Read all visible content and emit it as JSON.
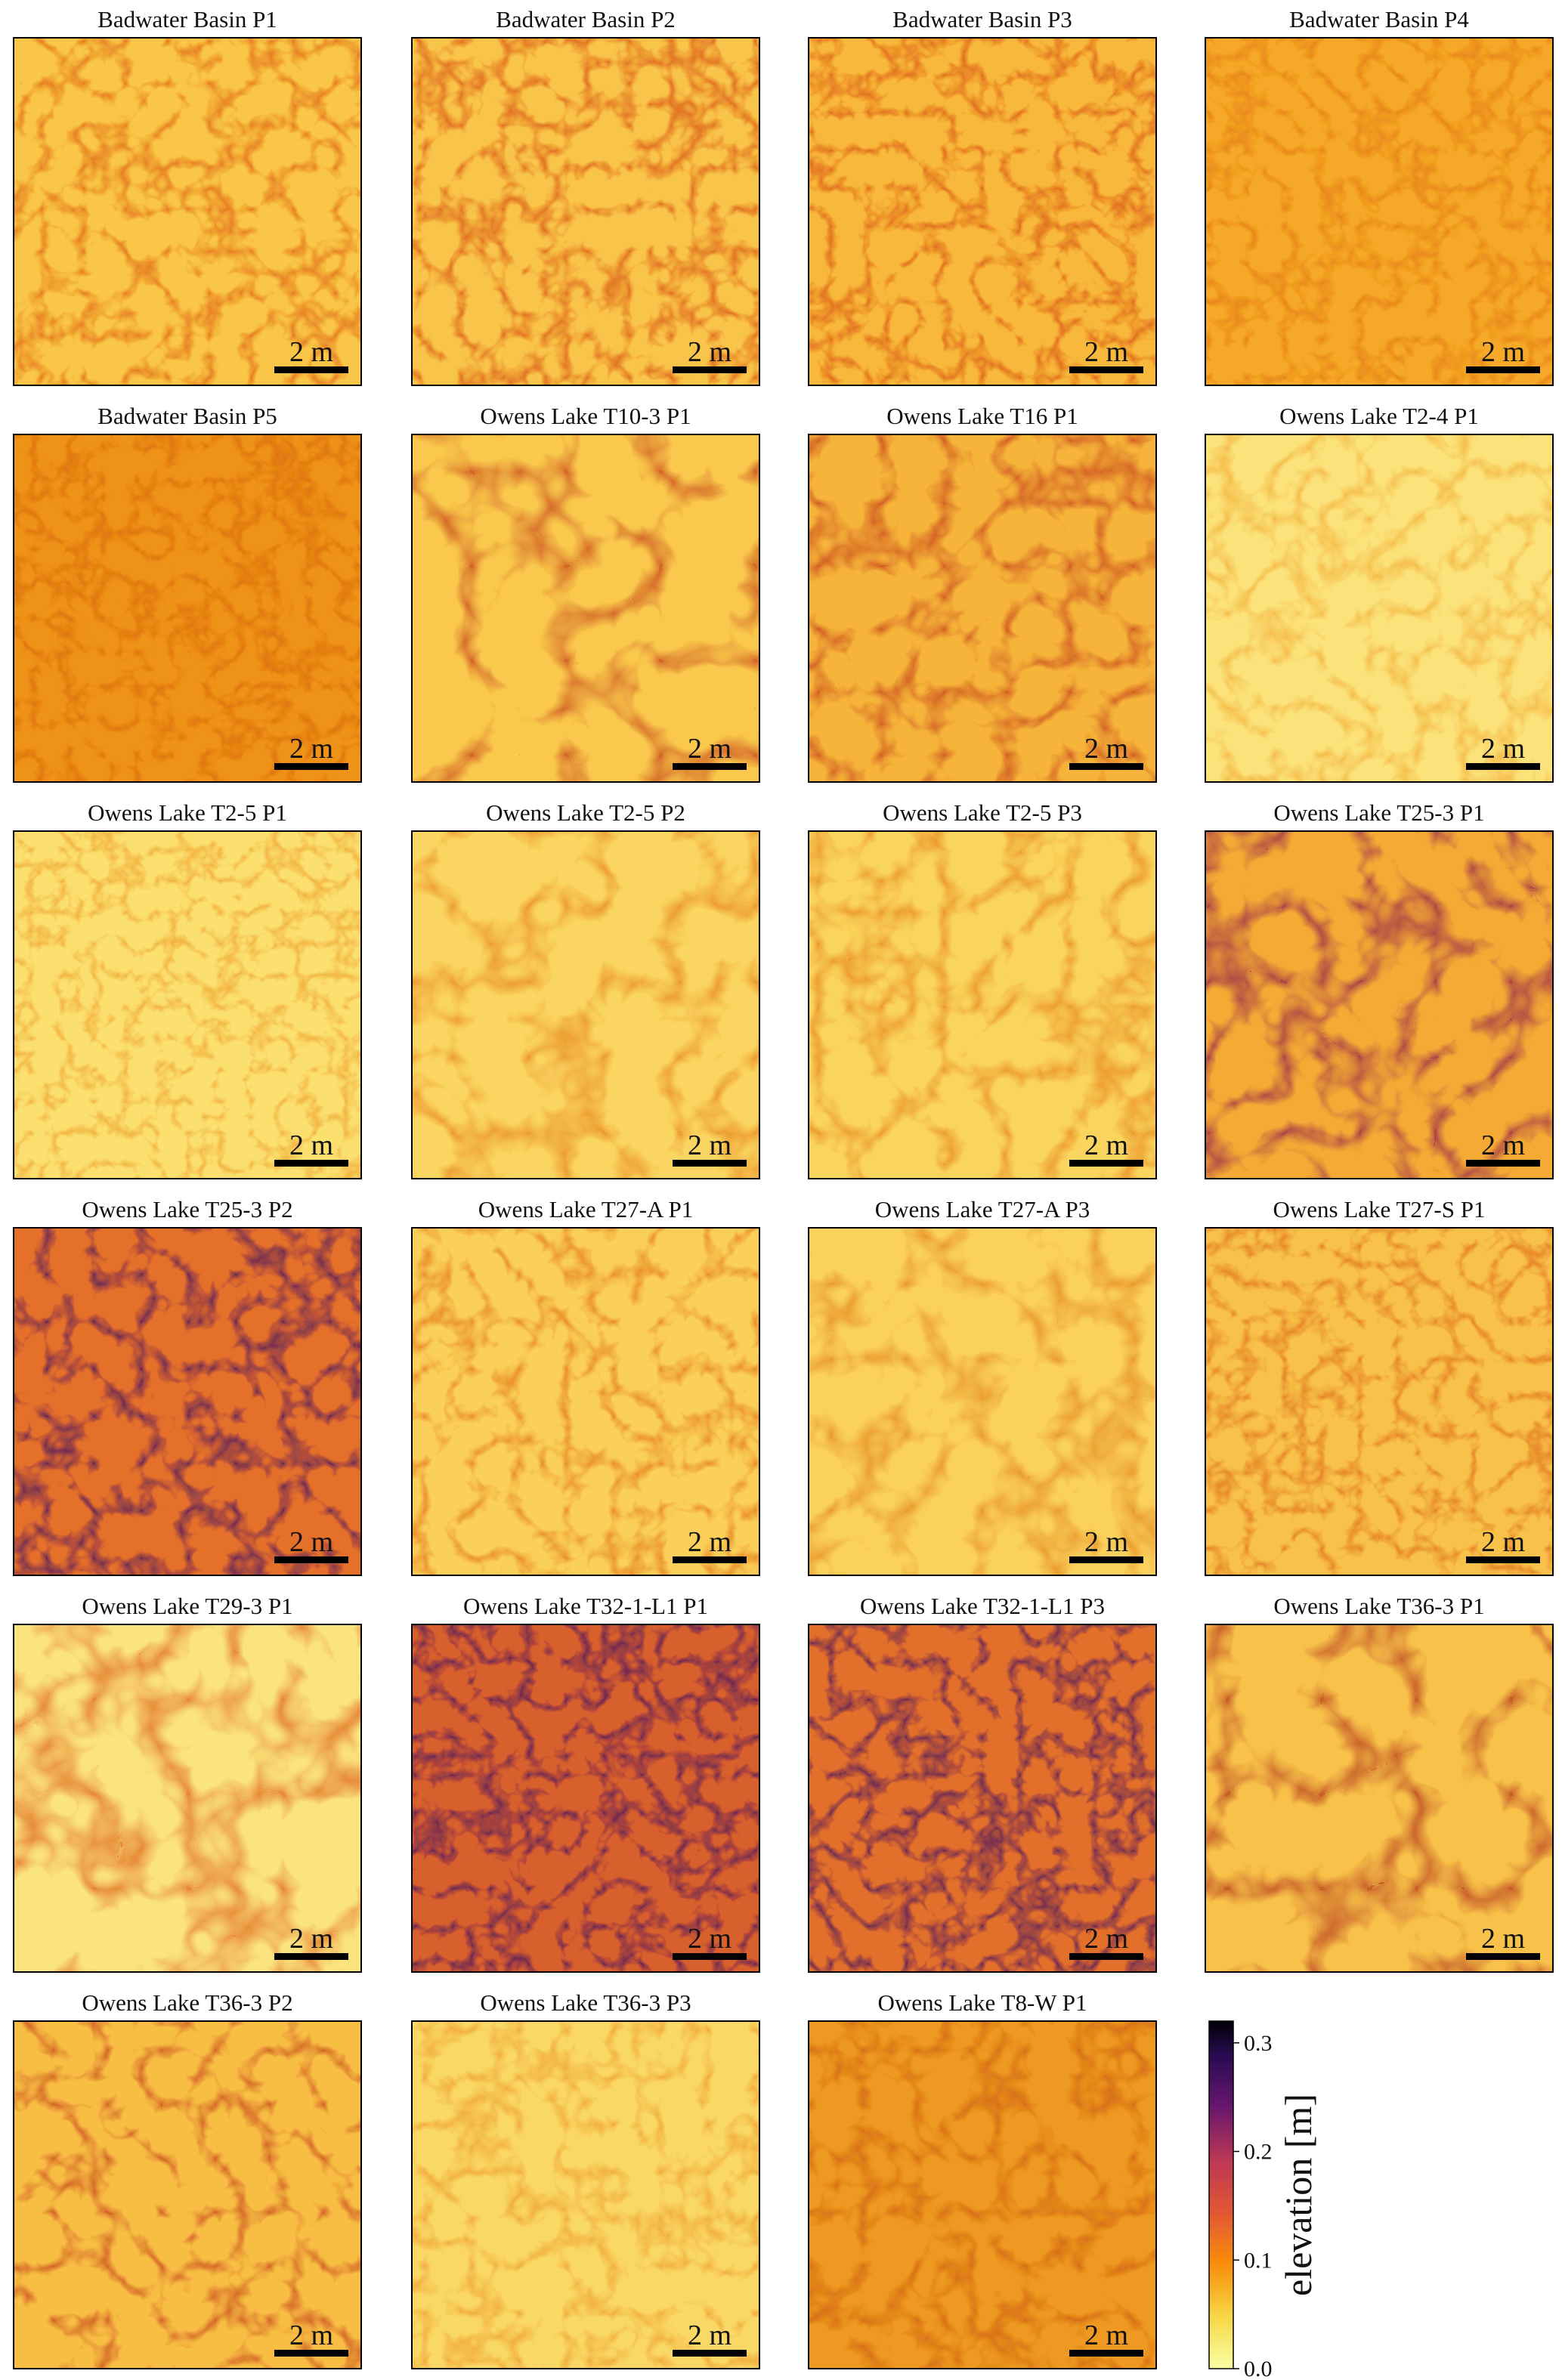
{
  "panels": [
    {
      "title": "Badwater Basin P1",
      "scale_label": "2 m"
    },
    {
      "title": "Badwater Basin P2",
      "scale_label": "2 m"
    },
    {
      "title": "Badwater Basin P3",
      "scale_label": "2 m"
    },
    {
      "title": "Badwater Basin P4",
      "scale_label": "2 m"
    },
    {
      "title": "Badwater Basin P5",
      "scale_label": "2 m"
    },
    {
      "title": "Owens Lake T10-3 P1",
      "scale_label": "2 m"
    },
    {
      "title": "Owens Lake T16 P1",
      "scale_label": "2 m"
    },
    {
      "title": "Owens Lake T2-4 P1",
      "scale_label": "2 m"
    },
    {
      "title": "Owens Lake T2-5 P1",
      "scale_label": "2 m"
    },
    {
      "title": "Owens Lake T2-5 P2",
      "scale_label": "2 m"
    },
    {
      "title": "Owens Lake T2-5 P3",
      "scale_label": "2 m"
    },
    {
      "title": "Owens Lake T25-3 P1",
      "scale_label": "2 m"
    },
    {
      "title": "Owens Lake T25-3 P2",
      "scale_label": "2 m"
    },
    {
      "title": "Owens Lake T27-A P1",
      "scale_label": "2 m"
    },
    {
      "title": "Owens Lake T27-A P3",
      "scale_label": "2 m"
    },
    {
      "title": "Owens Lake T27-S P1",
      "scale_label": "2 m"
    },
    {
      "title": "Owens Lake T29-3 P1",
      "scale_label": "2 m"
    },
    {
      "title": "Owens Lake T32-1-L1 P1",
      "scale_label": "2 m"
    },
    {
      "title": "Owens Lake T32-1-L1 P3",
      "scale_label": "2 m"
    },
    {
      "title": "Owens Lake T36-3 P1",
      "scale_label": "2 m"
    },
    {
      "title": "Owens Lake T36-3 P2",
      "scale_label": "2 m"
    },
    {
      "title": "Owens Lake T36-3 P3",
      "scale_label": "2 m"
    },
    {
      "title": "Owens Lake T8-W P1",
      "scale_label": "2 m"
    }
  ],
  "colorbar": {
    "label": "elevation [m]",
    "lim": [
      0,
      0.32
    ],
    "ticks": [
      {
        "value": 0,
        "label": "0.0"
      },
      {
        "value": 0.1,
        "label": "0.1"
      },
      {
        "value": 0.2,
        "label": "0.2"
      },
      {
        "value": 0.3,
        "label": "0.3"
      }
    ]
  }
}
